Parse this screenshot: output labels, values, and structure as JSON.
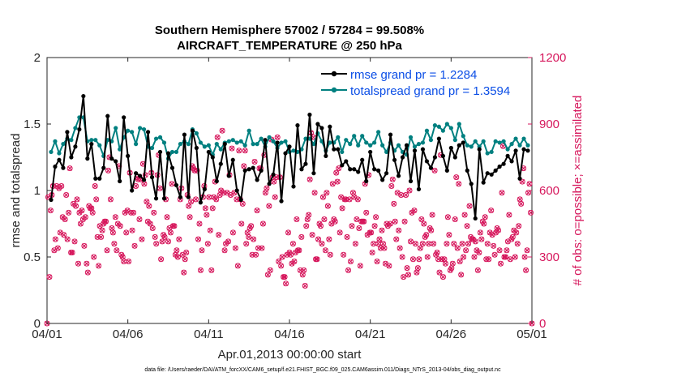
{
  "chart_data": {
    "type": "line",
    "title": "Southern Hemisphere 57002 / 57284 = 99.508%",
    "subtitle": "AIRCRAFT_TEMPERATURE @ 250 hPa",
    "xlabel": "Apr.01,2013 00:00:00 start",
    "ylabel": "rmse and totalspread",
    "ylabel_right": "# of obs: o=possible; ×=assimilated",
    "x_tick_labels": [
      "04/01",
      "04/06",
      "04/11",
      "04/16",
      "04/21",
      "04/26",
      "05/01"
    ],
    "x_tick_days": [
      0,
      5,
      10,
      15,
      20,
      25,
      30
    ],
    "xlim_days": [
      0,
      30
    ],
    "ylim": [
      0,
      2
    ],
    "y_ticks": [
      "0",
      "0.5",
      "1",
      "1.5",
      "2"
    ],
    "ylim_right": [
      0,
      1200
    ],
    "y_ticks_right": [
      "0",
      "300",
      "600",
      "900",
      "1200"
    ],
    "legend_position": "top-right",
    "colors": {
      "rmse": "#000000",
      "spread": "#008080",
      "obs": "#d6175c"
    },
    "series": [
      {
        "name": "rmse grand pr = 1.2284",
        "values": [
          0.93,
          1.18,
          1.23,
          1.17,
          1.44,
          1.25,
          1.33,
          1.46,
          1.71,
          1.24,
          1.35,
          1.09,
          1.09,
          1.17,
          1.56,
          1.24,
          1.22,
          1.07,
          1.55,
          1.26,
          1.0,
          1.13,
          1.11,
          1.08,
          1.44,
          1.1,
          0.94,
          1.29,
          0.94,
          1.28,
          1.17,
          1.04,
          0.95,
          1.42,
          0.95,
          1.45,
          1.32,
          0.91,
          1.01,
          1.29,
          1.25,
          1.07,
          1.2,
          1.35,
          1.11,
          1.23,
          1.0,
          0.93,
          1.15,
          1.16,
          1.17,
          1.08,
          1.15,
          1.38,
          1.05,
          1.12,
          1.36,
          0.92,
          1.28,
          1.33,
          1.03,
          1.49,
          1.16,
          1.2,
          1.57,
          1.13,
          1.5,
          1.47,
          1.26,
          1.48,
          1.31,
          1.31,
          1.19,
          1.22,
          1.16,
          1.16,
          1.14,
          1.23,
          1.07,
          1.29,
          1.16,
          1.15,
          1.08,
          1.13,
          1.42,
          1.23,
          1.11,
          1.25,
          1.34,
          1.07,
          1.3,
          1.01,
          1.31,
          1.22,
          1.17,
          1.25,
          1.39,
          1.26,
          1.15,
          1.32,
          1.25,
          1.34,
          1.36,
          1.15,
          1.05,
          0.79,
          1.31,
          1.06,
          1.13,
          1.12,
          1.15,
          1.18,
          1.2,
          1.26,
          1.22,
          1.3,
          1.09,
          1.31,
          1.3
        ]
      },
      {
        "name": "totalspread grand pr = 1.3594",
        "values": [
          1.29,
          1.37,
          1.28,
          1.35,
          1.39,
          1.38,
          1.47,
          1.55,
          1.55,
          1.37,
          1.38,
          1.38,
          1.34,
          1.26,
          1.38,
          1.37,
          1.47,
          1.31,
          1.4,
          1.45,
          1.44,
          1.35,
          1.47,
          1.46,
          1.33,
          1.32,
          1.39,
          1.4,
          1.36,
          1.24,
          1.29,
          1.29,
          1.35,
          1.37,
          1.35,
          1.46,
          1.43,
          1.36,
          1.33,
          1.34,
          1.27,
          1.35,
          1.31,
          1.36,
          1.37,
          1.38,
          1.36,
          1.37,
          1.34,
          1.45,
          1.35,
          1.35,
          1.39,
          1.33,
          1.4,
          1.37,
          1.32,
          1.36,
          1.37,
          1.29,
          1.3,
          1.29,
          1.31,
          1.39,
          1.39,
          1.35,
          1.43,
          1.37,
          1.3,
          1.36,
          1.36,
          1.4,
          1.29,
          1.38,
          1.35,
          1.41,
          1.34,
          1.41,
          1.36,
          1.34,
          1.36,
          1.44,
          1.34,
          1.29,
          1.36,
          1.3,
          1.34,
          1.29,
          1.27,
          1.4,
          1.33,
          1.35,
          1.36,
          1.45,
          1.38,
          1.49,
          1.48,
          1.45,
          1.5,
          1.47,
          1.38,
          1.5,
          1.41,
          1.34,
          1.33,
          1.37,
          1.33,
          1.37,
          1.28,
          1.29,
          1.37,
          1.36,
          1.37,
          1.31,
          1.35,
          1.39,
          1.34,
          1.39,
          1.34
        ]
      }
    ],
    "obs_counts_possible": [
      0,
      570,
      210,
      510,
      580,
      620,
      330,
      380,
      620,
      340,
      610,
      410,
      620,
      480,
      400,
      470,
      580,
      380,
      500,
      700,
      320,
      320,
      540,
      370,
      530,
      560,
      270,
      500,
      450,
      510,
      470,
      350,
      480,
      270,
      230,
      530,
      520,
      520,
      500,
      300,
      620,
      560,
      390,
      260,
      440,
      390,
      420,
      450,
      460,
      460,
      330,
      690,
      750,
      560,
      430,
      410,
      360,
      480,
      330,
      450,
      710,
      440,
      310,
      300,
      280,
      500,
      410,
      510,
      280,
      680,
      500,
      420,
      500,
      350,
      620,
      660,
      650,
      470,
      650,
      380,
      720,
      630,
      670,
      550,
      460,
      530,
      450,
      680,
      430,
      500,
      390,
      360,
      670,
      760,
      610,
      290,
      370,
      400,
      390,
      560,
      480,
      370,
      430,
      410,
      630,
      440,
      440,
      310,
      330,
      300,
      380,
      560,
      610,
      310,
      230,
      290,
      320,
      580,
      530,
      480,
      550,
      710,
      700,
      690,
      560,
      690,
      380,
      450,
      240,
      330,
      570,
      620,
      520,
      490,
      360,
      570,
      420,
      240,
      520,
      570,
      640,
      560,
      840,
      400,
      580,
      600,
      870,
      590,
      330,
      360,
      590,
      370,
      670,
      580,
      790,
      410,
      590,
      340,
      560,
      260,
      780,
      560,
      450,
      540,
      710,
      780,
      360,
      410,
      390,
      430,
      440,
      310,
      380,
      730,
      310,
      510,
      340,
      700,
      700,
      340,
      450,
      760,
      590,
      610,
      220,
      530,
      240,
      830,
      660,
      640,
      570,
      660,
      840,
      280,
      660,
      260,
      300,
      210,
      210,
      180,
      310,
      410,
      320,
      310,
      270,
      360,
      280,
      320,
      470,
      330,
      330,
      240,
      390,
      220,
      240,
      170,
      440,
      470,
      490,
      650,
      860,
      400,
      840,
      590,
      290,
      290,
      380,
      450,
      440,
      360,
      570,
      470,
      330,
      590,
      530,
      380,
      310,
      450,
      630,
      470,
      460,
      680,
      640,
      700,
      410,
      570,
      520,
      310,
      560,
      560,
      390,
      240,
      560,
      280,
      440,
      590,
      570,
      360,
      470,
      560,
      430,
      260,
      460,
      460,
      460,
      630,
      500,
      400,
      670,
      410,
      410,
      320,
      360,
      440,
      480,
      280,
      360,
      380,
      340,
      420,
      360,
      340,
      270,
      450,
      440,
      260,
      450,
      620,
      650,
      540,
      460,
      380,
      590,
      420,
      340,
      580,
      300,
      210,
      460,
      580,
      250,
      220,
      600,
      370,
      500,
      290,
      510,
      360,
      230,
      250,
      290,
      340,
      470,
      360,
      450,
      390,
      400,
      300,
      360,
      430,
      420,
      490,
      360,
      690,
      310,
      320,
      290,
      230,
      760,
      290,
      210,
      290,
      270,
      360,
      480,
      400,
      240,
      250,
      270,
      360,
      470,
      660,
      340,
      630,
      280,
      220,
      360,
      300,
      490,
      330,
      440,
      360,
      530,
      390,
      380,
      380,
      300,
      370,
      330,
      240,
      320,
      410,
      380,
      460,
      450,
      480,
      290,
      360,
      290,
      410,
      510,
      400,
      350,
      310,
      410,
      430,
      420,
      330,
      270,
      590,
      800,
      300,
      300,
      330,
      370,
      490,
      290,
      380,
      390,
      420,
      300,
      410,
      360,
      440,
      560,
      540,
      640,
      700,
      300,
      240,
      330,
      590,
      630,
      500,
      0
    ]
  },
  "footer": "data file: /Users/raeder/DAI/ATM_forcXX/CAM6_setup/f.e21.FHIST_BGC.f09_025.CAM6assim.011/Diags_NTrS_2013-04/obs_diag_output.nc"
}
